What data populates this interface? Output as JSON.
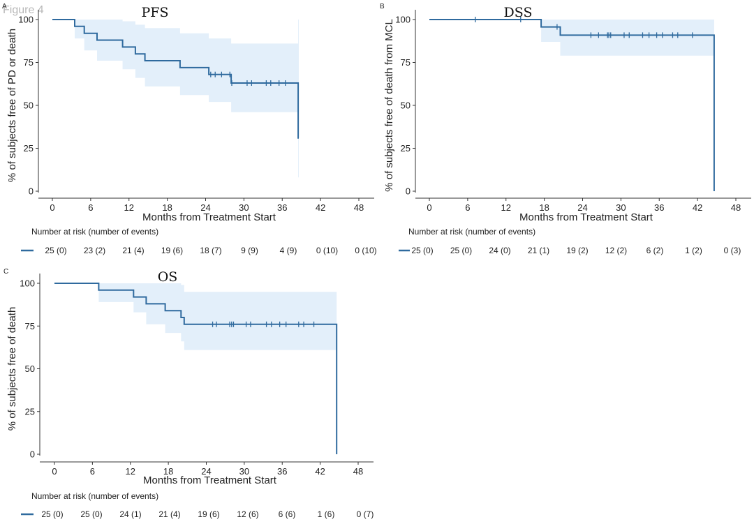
{
  "figure_label": "Figure 4",
  "colors": {
    "line": "#2f6a9e",
    "band": "#e3effa"
  },
  "panels": [
    {
      "letter": "A",
      "title": "PFS",
      "ylabel": "% of subjects free of PD or death",
      "xlabel": "Months from Treatment Start",
      "risk_header": "Number at risk (number of events)",
      "risk": [
        "25 (0)",
        "23 (2)",
        "21 (4)",
        "19 (6)",
        "18 (7)",
        "9 (9)",
        "4 (9)",
        "0 (10)",
        "0 (10)"
      ]
    },
    {
      "letter": "B",
      "title": "DSS",
      "ylabel": "% of subjects free of death from MCL",
      "xlabel": "Months from Treatment Start",
      "risk_header": "Number at risk (number of events)",
      "risk": [
        "25 (0)",
        "25 (0)",
        "24 (0)",
        "21 (1)",
        "19 (2)",
        "12 (2)",
        "6 (2)",
        "1 (2)",
        "0 (3)"
      ]
    },
    {
      "letter": "C",
      "title": "OS",
      "ylabel": "% of subjects free of death",
      "xlabel": "Months from Treatment Start",
      "risk_header": "Number at risk (number of events)",
      "risk": [
        "25 (0)",
        "25 (0)",
        "24 (1)",
        "21 (4)",
        "19 (6)",
        "12 (6)",
        "6 (6)",
        "1 (6)",
        "0 (7)"
      ]
    }
  ],
  "chart_data": [
    {
      "type": "line",
      "title": "PFS",
      "xlabel": "Months from Treatment Start",
      "ylabel": "% of subjects free of PD or death",
      "xlim": [
        0,
        48
      ],
      "ylim": [
        0,
        100
      ],
      "xticks": [
        0,
        6,
        12,
        18,
        24,
        30,
        36,
        42,
        48
      ],
      "yticks": [
        0,
        25,
        50,
        75,
        100
      ],
      "grid": false,
      "series": [
        {
          "x": [
            0,
            3.5,
            5,
            7,
            11,
            13,
            14.5,
            20,
            24.5,
            28,
            38.5,
            38.6
          ],
          "y": [
            100,
            96,
            92,
            88,
            84,
            80,
            76,
            72,
            68,
            63,
            31,
            31
          ],
          "lower": [
            100,
            89,
            82,
            76,
            71,
            66,
            61,
            56,
            52,
            46,
            8,
            8
          ],
          "upper": [
            100,
            100,
            100,
            100,
            99,
            97,
            95,
            92,
            89,
            86,
            100,
            100
          ],
          "censor_x": [
            24.8,
            25.5,
            26.5,
            27.8,
            28.1,
            30.5,
            31.2,
            33.5,
            34.2,
            35.5,
            36.5
          ]
        }
      ]
    },
    {
      "type": "line",
      "title": "DSS",
      "xlabel": "Months from Treatment Start",
      "ylabel": "% of subjects free of death from MCL",
      "xlim": [
        0,
        48
      ],
      "ylim": [
        0,
        100
      ],
      "xticks": [
        0,
        6,
        12,
        18,
        24,
        30,
        36,
        42,
        48
      ],
      "yticks": [
        0,
        25,
        50,
        75,
        100
      ],
      "grid": false,
      "series": [
        {
          "x": [
            0,
            17.5,
            20.5,
            44.6,
            44.6
          ],
          "y": [
            100,
            95.7,
            90.9,
            90.9,
            0
          ],
          "lower": [
            100,
            87,
            79,
            79,
            0
          ],
          "upper": [
            100,
            100,
            100,
            100,
            0
          ],
          "censor_x": [
            7.2,
            14.3,
            20,
            25.3,
            26.5,
            27.9,
            28.1,
            28.4,
            30.5,
            31.3,
            33.4,
            34.4,
            35.6,
            36.5,
            38.1,
            38.9,
            41.2
          ]
        }
      ]
    },
    {
      "type": "line",
      "title": "OS",
      "xlabel": "Months from Treatment Start",
      "ylabel": "% of subjects free of death",
      "xlim": [
        0,
        48
      ],
      "ylim": [
        0,
        100
      ],
      "xticks": [
        0,
        6,
        12,
        18,
        24,
        30,
        36,
        42,
        48
      ],
      "yticks": [
        0,
        25,
        50,
        75,
        100
      ],
      "grid": false,
      "series": [
        {
          "x": [
            0,
            7,
            12.5,
            14.5,
            17.5,
            20,
            20.5,
            44.6,
            44.6
          ],
          "y": [
            100,
            96,
            92,
            88,
            84,
            80,
            76,
            76,
            0
          ],
          "lower": [
            100,
            89,
            83,
            76,
            71,
            66,
            61,
            61,
            0
          ],
          "upper": [
            100,
            100,
            100,
            100,
            100,
            99,
            95,
            95,
            0
          ],
          "censor_x": [
            25,
            25.6,
            27.7,
            28,
            28.3,
            30.3,
            31,
            33.5,
            34.3,
            35.6,
            36.6,
            38.6,
            39.4,
            41
          ]
        }
      ]
    }
  ]
}
